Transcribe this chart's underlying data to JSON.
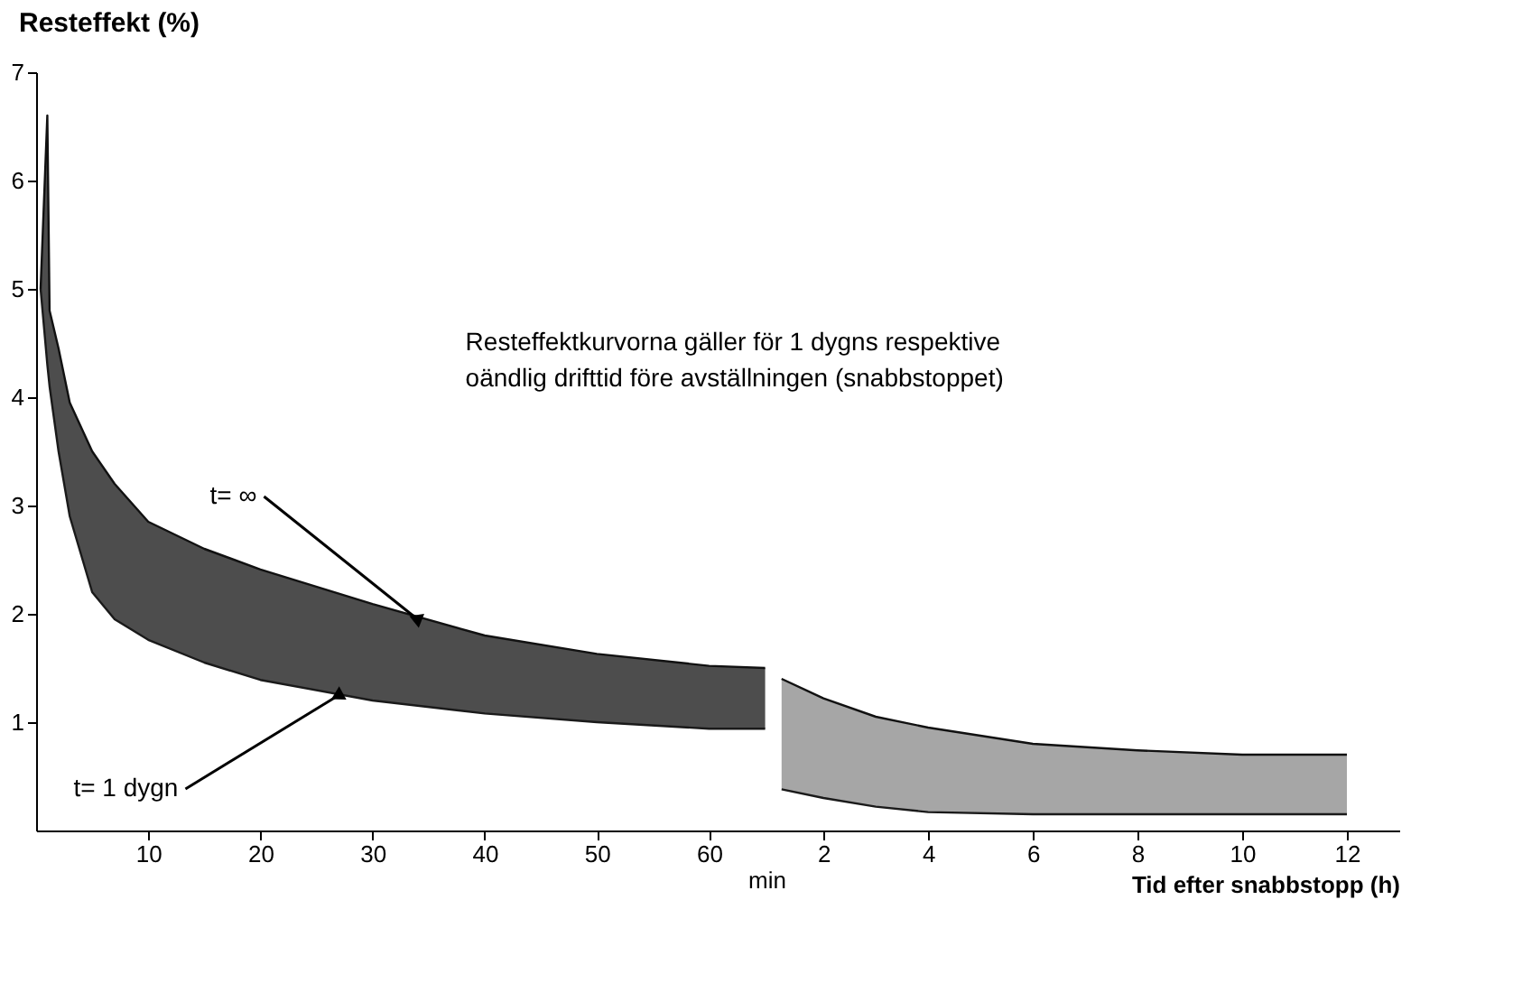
{
  "chart_data": [
    {
      "type": "area",
      "ylabel": "Resteffekt (%)",
      "xlim": [
        0,
        66
      ],
      "xticks": [
        10,
        20,
        30,
        40,
        50,
        60
      ],
      "ylim": [
        0,
        7
      ],
      "yticks": [
        1,
        2,
        3,
        4,
        5,
        6,
        7
      ],
      "grid": false,
      "series": [
        {
          "color": "#4d4d4d",
          "x": [
            0.4,
            1,
            1.2,
            2,
            3,
            5,
            7,
            10,
            15,
            20,
            30,
            40,
            50,
            60,
            65
          ],
          "values": [
            5.0,
            6.6,
            4.8,
            4.45,
            3.95,
            3.5,
            3.2,
            2.85,
            2.6,
            2.41,
            2.09,
            1.8,
            1.63,
            1.52,
            1.5
          ]
        },
        {
          "type": "line",
          "color": "#1a1a1a",
          "x": [
            0.4,
            1,
            1.2,
            2,
            3,
            5,
            7,
            10,
            15,
            20,
            30,
            40,
            50,
            60,
            65
          ],
          "values": [
            5.0,
            4.3,
            4.1,
            3.5,
            2.9,
            2.2,
            1.95,
            1.76,
            1.55,
            1.39,
            1.2,
            1.08,
            1.0,
            0.94,
            0.94
          ]
        }
      ],
      "annotations": [
        "Resteffektkurvorna gäller för 1 dygns respektive\noändlig drifttid före avställningen (snabbstoppet)",
        "min",
        {
          "text": "t= ∞",
          "x": 34,
          "y": 1.95
        },
        {
          "text": "t= 1 dygn",
          "x": 27,
          "y": 1.25
        }
      ]
    },
    {
      "type": "area",
      "xlabel": "Tid efter  snabbstopp (h)",
      "xlim": [
        1.1,
        13
      ],
      "xticks": [
        2,
        4,
        6,
        8,
        10,
        12
      ],
      "ylim": [
        0,
        7
      ],
      "yticks": [
        1,
        2,
        3,
        4,
        5,
        6,
        7
      ],
      "tick_labels": "x",
      "grid": false,
      "series": [
        {
          "color": "#a6a6a6",
          "x": [
            1.2,
            2,
            3,
            4,
            6,
            8,
            10,
            12
          ],
          "values": [
            1.4,
            1.22,
            1.05,
            0.95,
            0.8,
            0.74,
            0.7,
            0.7
          ]
        },
        {
          "type": "line",
          "color": "#1a1a1a",
          "x": [
            1.2,
            2,
            3,
            4,
            6,
            8,
            10,
            12
          ],
          "values": [
            0.38,
            0.3,
            0.22,
            0.17,
            0.15,
            0.15,
            0.15,
            0.15
          ]
        }
      ]
    }
  ]
}
